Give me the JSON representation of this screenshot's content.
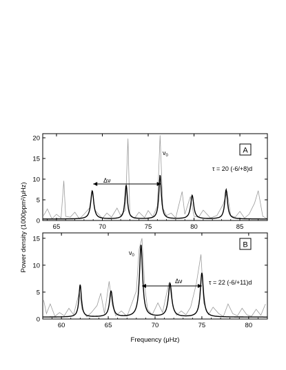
{
  "chart_data": [
    {
      "type": "line",
      "panel_letter": "A",
      "tau_label": "τ = 20 (-6/+8)d",
      "nu0_label": "ν",
      "nu0_sub": "0",
      "delta_nu_label": "Δν",
      "xlim": [
        63.5,
        88.0
      ],
      "ylim": [
        0,
        21
      ],
      "x_ticks": [
        65,
        70,
        75,
        80,
        85
      ],
      "y_ticks": [
        0,
        5,
        10,
        15,
        20
      ],
      "nu0_x": 76.2,
      "delta_nu_range": [
        69.0,
        76.4
      ],
      "series": [
        {
          "style": "grey-spectrum",
          "x": [
            63.6,
            64.0,
            64.5,
            65.0,
            65.5,
            65.8,
            66.0,
            66.5,
            67.0,
            67.5,
            68.0,
            68.6,
            68.9,
            69.2,
            70.0,
            70.5,
            71.0,
            71.6,
            72.0,
            72.5,
            72.8,
            73.0,
            73.5,
            74.0,
            74.6,
            75.0,
            75.5,
            76.0,
            76.3,
            76.6,
            77.0,
            77.5,
            78.0,
            78.7,
            79.0,
            79.6,
            80.0,
            80.5,
            81.0,
            81.8,
            82.5,
            83.2,
            83.6,
            84.0,
            84.5,
            85.0,
            85.5,
            86.0,
            86.6,
            87.0,
            87.5,
            88.0
          ],
          "y": [
            1.2,
            2.8,
            0.4,
            1.5,
            0.6,
            9.6,
            1.0,
            0.8,
            2.0,
            0.4,
            1.5,
            3.0,
            7.2,
            2.5,
            0.5,
            1.8,
            0.8,
            3.0,
            1.2,
            2.5,
            19.8,
            1.5,
            0.5,
            2.0,
            0.7,
            2.4,
            0.9,
            3.5,
            20.6,
            3.0,
            1.2,
            1.8,
            0.6,
            7.0,
            1.5,
            5.8,
            1.0,
            0.8,
            2.5,
            0.6,
            1.2,
            4.0,
            7.0,
            1.2,
            0.8,
            2.2,
            0.6,
            1.5,
            4.2,
            7.2,
            1.0,
            0.4
          ]
        },
        {
          "style": "black-fit",
          "peaks": [
            {
              "center": 68.9,
              "height": 6.8,
              "width": 0.2
            },
            {
              "center": 72.6,
              "height": 8.2,
              "width": 0.16
            },
            {
              "center": 76.3,
              "height": 10.6,
              "width": 0.16
            },
            {
              "center": 79.8,
              "height": 5.7,
              "width": 0.2
            },
            {
              "center": 83.5,
              "height": 7.1,
              "width": 0.18
            }
          ]
        }
      ]
    },
    {
      "type": "line",
      "panel_letter": "B",
      "tau_label": "τ = 22 (-6/+11)d",
      "nu0_label": "ν",
      "nu0_sub": "0",
      "delta_nu_label": "Δν",
      "xlim": [
        58.0,
        82.0
      ],
      "ylim": [
        0,
        16
      ],
      "x_ticks": [
        60,
        65,
        70,
        75,
        80
      ],
      "y_ticks": [
        0,
        5,
        10,
        15
      ],
      "nu0_x": 68.4,
      "delta_nu_range": [
        68.6,
        75.0
      ],
      "series": [
        {
          "style": "grey-spectrum",
          "x": [
            58.1,
            58.4,
            58.8,
            59.3,
            59.8,
            60.3,
            60.8,
            61.3,
            61.9,
            62.2,
            62.7,
            63.2,
            63.8,
            64.2,
            64.6,
            65.1,
            65.4,
            65.8,
            66.4,
            67.0,
            67.5,
            68.0,
            68.3,
            68.6,
            68.9,
            69.2,
            69.7,
            70.3,
            70.8,
            71.2,
            71.5,
            71.9,
            72.3,
            72.8,
            73.3,
            73.8,
            74.4,
            74.9,
            75.2,
            75.7,
            76.2,
            76.8,
            77.3,
            77.8,
            78.3,
            78.8,
            79.3,
            79.8,
            80.3,
            80.8,
            81.3,
            81.8
          ],
          "y": [
            3.5,
            1.0,
            2.8,
            0.5,
            1.2,
            0.6,
            2.0,
            0.8,
            5.0,
            1.8,
            0.4,
            1.2,
            2.5,
            4.8,
            1.0,
            7.0,
            2.8,
            0.6,
            1.5,
            0.5,
            2.8,
            5.2,
            13.0,
            15.0,
            6.0,
            1.8,
            0.8,
            3.0,
            1.2,
            4.5,
            6.8,
            2.4,
            0.7,
            1.5,
            0.8,
            2.2,
            6.5,
            12.0,
            3.0,
            0.8,
            2.2,
            1.0,
            0.5,
            2.8,
            1.0,
            0.6,
            2.0,
            0.8,
            0.5,
            1.8,
            0.7,
            2.8
          ]
        },
        {
          "style": "black-fit",
          "peaks": [
            {
              "center": 62.0,
              "height": 6.0,
              "width": 0.16
            },
            {
              "center": 65.3,
              "height": 4.8,
              "width": 0.2
            },
            {
              "center": 68.5,
              "height": 13.4,
              "width": 0.2
            },
            {
              "center": 71.6,
              "height": 6.2,
              "width": 0.22
            },
            {
              "center": 75.0,
              "height": 8.2,
              "width": 0.2
            }
          ]
        }
      ]
    }
  ],
  "shared_axes": {
    "xlabel": "Frequency (μHz)",
    "ylabel": "Power density  (1000ppm²/μHz)"
  }
}
